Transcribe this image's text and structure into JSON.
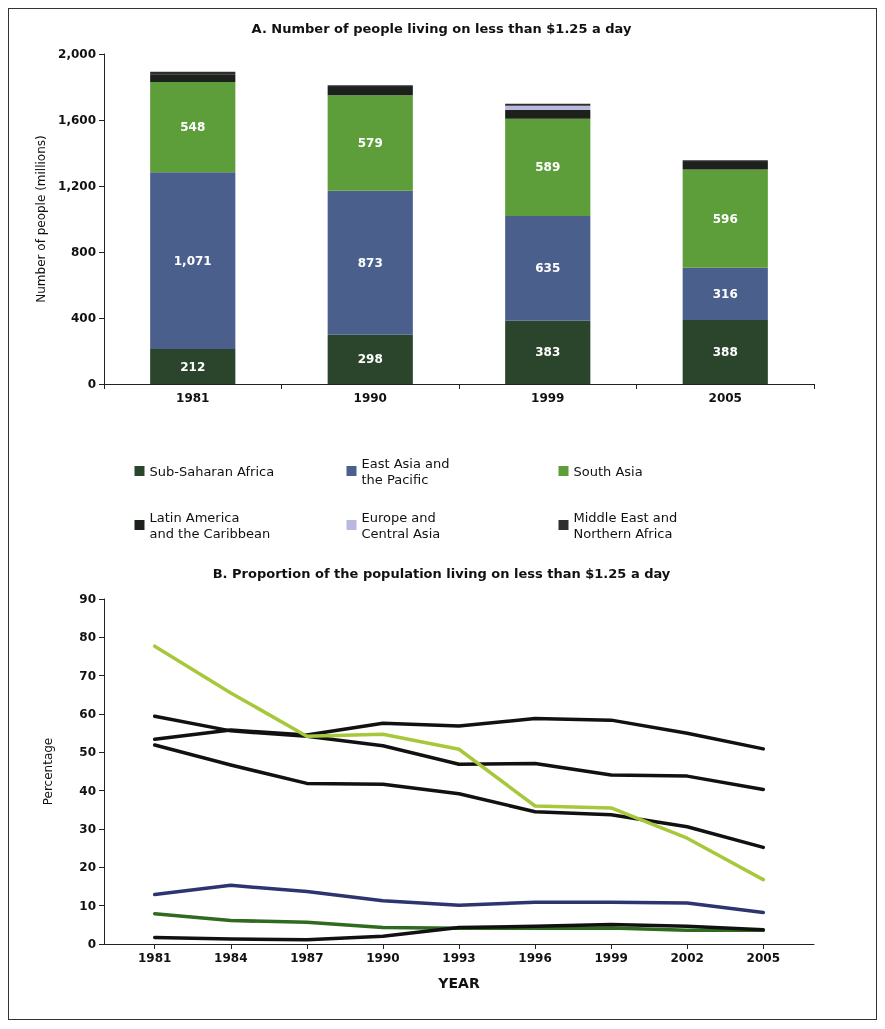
{
  "chart_data": [
    {
      "type": "bar",
      "title": "A. Number of people living on less than $1.25 a day",
      "ylabel": "Number of people (millions)",
      "categories": [
        "1981",
        "1990",
        "1999",
        "2005"
      ],
      "stacked": true,
      "ylim": [
        0,
        2000
      ],
      "yticks": [
        0,
        400,
        800,
        {
          "value": 1200,
          "label": "1,200"
        },
        {
          "value": 1600,
          "label": "1,600"
        },
        {
          "value": 2000,
          "label": "2,000"
        }
      ],
      "grid": false,
      "legend": "bottom",
      "series": [
        {
          "name": "Sub-Saharan Africa",
          "color": "#2b452c",
          "values": [
            212,
            298,
            383,
            388
          ],
          "value_labels": [
            "212",
            "298",
            "383",
            "388"
          ]
        },
        {
          "name": "East Asia and the Pacific",
          "color": "#4a5f8c",
          "values": [
            1071,
            873,
            635,
            316
          ],
          "value_labels": [
            "1,071",
            "873",
            "635",
            "316"
          ]
        },
        {
          "name": "South Asia",
          "color": "#5d9e3a",
          "values": [
            548,
            579,
            589,
            596
          ],
          "value_labels": [
            "548",
            "579",
            "589",
            "596"
          ]
        },
        {
          "name": "Latin America and the Caribbean",
          "color": "#1c211c",
          "values": [
            47,
            50,
            55,
            45
          ]
        },
        {
          "name": "Europe and Central Asia",
          "color": "#b8b8e0",
          "values": [
            null,
            null,
            24,
            null
          ]
        },
        {
          "name": "Middle East and Northern Africa",
          "color": "#2e2e2e",
          "values": [
            14,
            10,
            12,
            11
          ]
        }
      ]
    },
    {
      "type": "line",
      "title": "B. Proportion of the population living on less than $1.25 a day",
      "xlabel": "YEAR",
      "ylabel": "Percentage",
      "x": [
        1981,
        1984,
        1987,
        1990,
        1993,
        1996,
        1999,
        2002,
        2005
      ],
      "xlim": [
        1979,
        2007
      ],
      "xticks": [
        1981,
        1984,
        1987,
        1990,
        1993,
        1996,
        1999,
        2002,
        2005
      ],
      "ylim": [
        0,
        90
      ],
      "yticks": [
        0,
        10,
        20,
        30,
        40,
        50,
        60,
        70,
        80,
        90
      ],
      "grid": false,
      "marker": "none",
      "line_style": "solid",
      "series": [
        {
          "color": "#111111",
          "values": [
            53.4,
            55.8,
            54.5,
            57.6,
            56.9,
            58.8,
            58.4,
            55.0,
            50.9
          ]
        },
        {
          "color": "#111111",
          "values": [
            59.4,
            55.6,
            54.2,
            51.7,
            46.9,
            47.1,
            44.1,
            43.8,
            40.3
          ]
        },
        {
          "color": "#111111",
          "values": [
            51.9,
            46.7,
            41.9,
            41.7,
            39.2,
            34.5,
            33.7,
            30.6,
            25.2
          ]
        },
        {
          "color": "#a8c83c",
          "values": [
            77.7,
            65.5,
            54.2,
            54.7,
            50.8,
            36.0,
            35.5,
            27.6,
            16.8
          ]
        },
        {
          "color": "#2e3470",
          "values": [
            12.9,
            15.3,
            13.7,
            11.3,
            10.1,
            10.9,
            10.9,
            10.7,
            8.2
          ]
        },
        {
          "color": "#2e6b1e",
          "values": [
            7.9,
            6.1,
            5.7,
            4.3,
            4.1,
            4.1,
            4.2,
            3.6,
            3.6
          ]
        },
        {
          "color": "#111111",
          "values": [
            1.7,
            1.3,
            1.1,
            2.0,
            4.3,
            4.6,
            5.1,
            4.6,
            3.7
          ]
        }
      ]
    }
  ]
}
